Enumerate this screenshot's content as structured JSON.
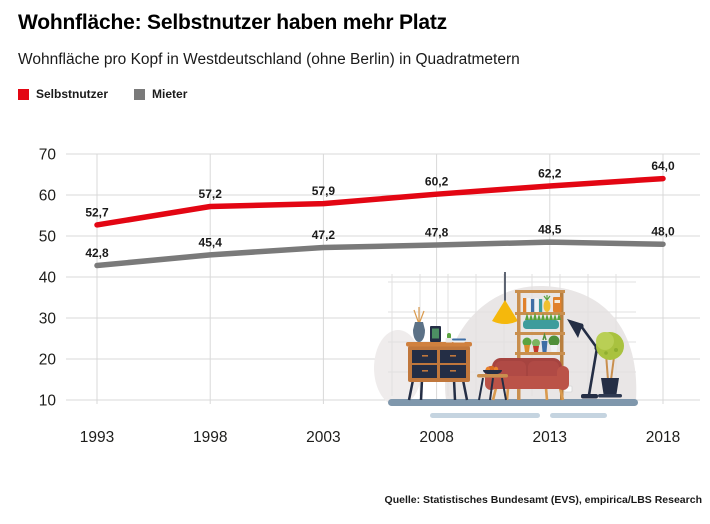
{
  "header": {
    "title": "Wohnfläche: Selbstnutzer haben mehr Platz",
    "subtitle": "Wohnfläche pro Kopf in Westdeutschland (ohne Berlin) in Quadratmetern"
  },
  "legend": [
    {
      "label": "Selbstnutzer",
      "color": "#e30613"
    },
    {
      "label": "Mieter",
      "color": "#7a7a7a"
    }
  ],
  "source": "Quelle: Statistisches Bundesamt (EVS), empirica/LBS Research",
  "colors": {
    "grid": "#d9d9d9",
    "tick_label": "#1d1d1b",
    "data_label": "#1a1a1a"
  },
  "chart_data": {
    "type": "line",
    "title": "Wohnfläche: Selbstnutzer haben mehr Platz",
    "subtitle": "Wohnfläche pro Kopf in Westdeutschland (ohne Berlin) in Quadratmetern",
    "x": [
      1993,
      1998,
      2003,
      2008,
      2013,
      2018
    ],
    "xlabel": "",
    "ylabel": "",
    "ylim": [
      10,
      70
    ],
    "yticks": [
      70,
      60,
      50,
      40,
      30,
      20,
      10
    ],
    "grid": true,
    "legend_position": "top-left",
    "series": [
      {
        "name": "Selbstnutzer",
        "color": "#e30613",
        "values": [
          52.7,
          57.2,
          57.9,
          60.2,
          62.2,
          64.0
        ],
        "labels": [
          "52,7",
          "57,2",
          "57,9",
          "60,2",
          "62,2",
          "64,0"
        ]
      },
      {
        "name": "Mieter",
        "color": "#7a7a7a",
        "values": [
          42.8,
          45.4,
          47.2,
          47.8,
          48.5,
          48.0
        ],
        "labels": [
          "42,8",
          "45,4",
          "47,2",
          "47,8",
          "48,5",
          "48,0"
        ]
      }
    ]
  }
}
